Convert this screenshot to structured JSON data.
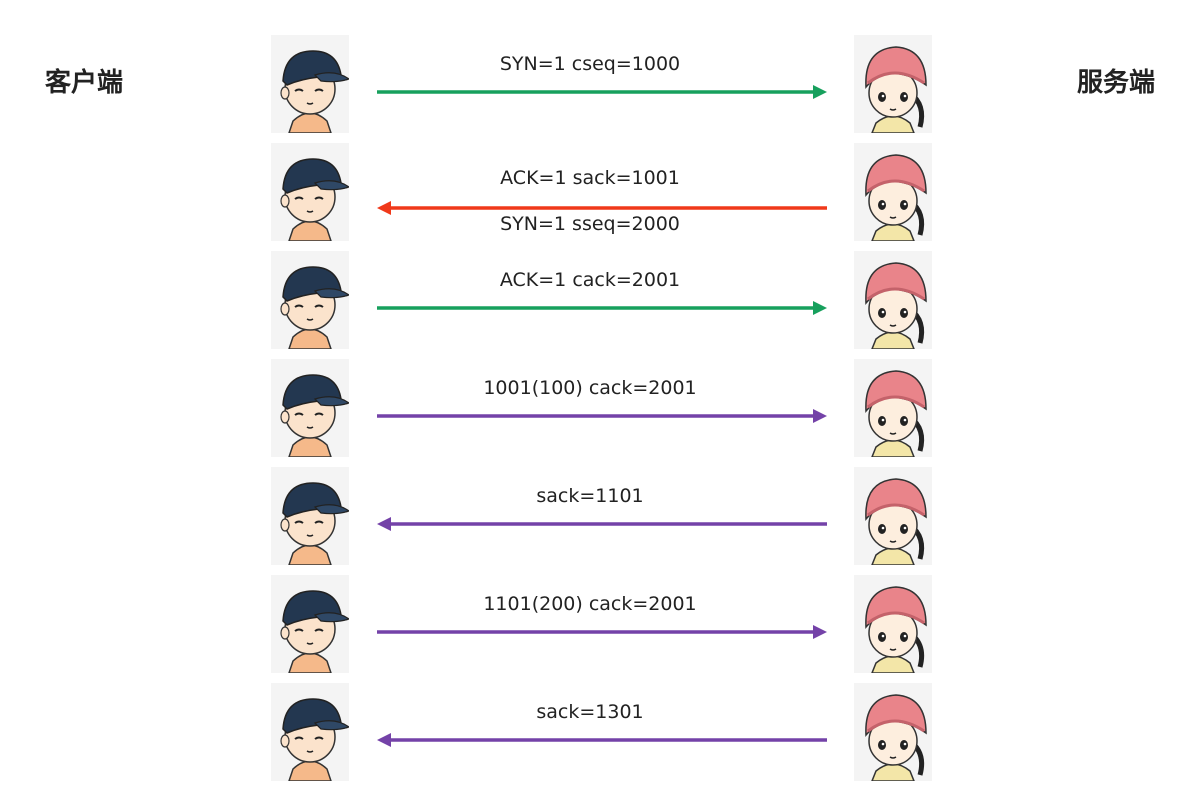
{
  "labels": {
    "client": "客户端",
    "server": "服务端"
  },
  "colors": {
    "green": "#17a05d",
    "red": "#f0391a",
    "purple": "#7442a8"
  },
  "messages": [
    {
      "direction": "right",
      "color": "green",
      "lines": [
        "SYN=1 cseq=1000"
      ]
    },
    {
      "direction": "left",
      "color": "red",
      "lines": [
        "ACK=1 sack=1001",
        "SYN=1 sseq=2000"
      ]
    },
    {
      "direction": "right",
      "color": "green",
      "lines": [
        "ACK=1 cack=2001"
      ]
    },
    {
      "direction": "right",
      "color": "purple",
      "lines": [
        "1001(100) cack=2001"
      ]
    },
    {
      "direction": "left",
      "color": "purple",
      "lines": [
        "sack=1101"
      ]
    },
    {
      "direction": "right",
      "color": "purple",
      "lines": [
        "1101(200) cack=2001"
      ]
    },
    {
      "direction": "left",
      "color": "purple",
      "lines": [
        "sack=1301"
      ]
    }
  ],
  "icons": {
    "client": "boy-avatar-icon",
    "server": "girl-avatar-icon"
  }
}
